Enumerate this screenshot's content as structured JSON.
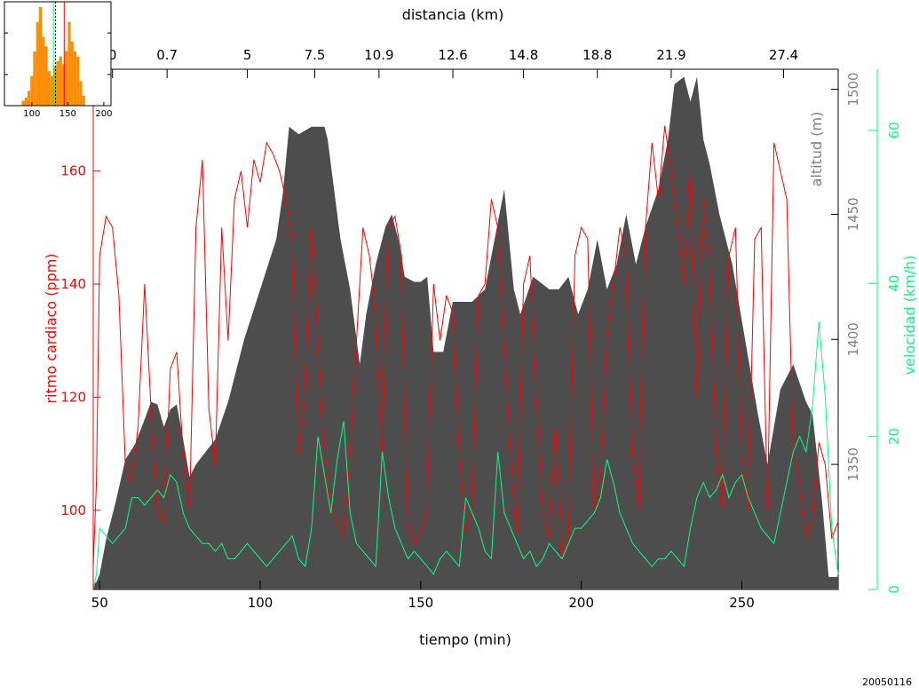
{
  "chart_data": [
    {
      "type": "area+line",
      "top_axis_label": "distancia (km)",
      "top_ticks": [
        {
          "t": 54,
          "label": "0"
        },
        {
          "t": 71,
          "label": "0.7"
        },
        {
          "t": 96,
          "label": "5"
        },
        {
          "t": 117,
          "label": "7.5"
        },
        {
          "t": 137,
          "label": "10.9"
        },
        {
          "t": 160,
          "label": "12.6"
        },
        {
          "t": 182,
          "label": "14.8"
        },
        {
          "t": 205,
          "label": "18.8"
        },
        {
          "t": 228,
          "label": "21.9"
        },
        {
          "t": 263,
          "label": "27.4"
        }
      ],
      "xlabel": "tiempo (min)",
      "x_ticks": [
        50,
        100,
        150,
        200,
        250
      ],
      "xlim": [
        48,
        280
      ],
      "y_left_label": "ritmo cardiaco (ppm)",
      "y_left_ticks": [
        100,
        120,
        140,
        160
      ],
      "y_left_lim": [
        86,
        178
      ],
      "y_right1_label": "altitud (m)",
      "y_right1_ticks": [
        1350,
        1400,
        1450,
        1500
      ],
      "y_right1_lim": [
        1300,
        1508
      ],
      "y_right2_label": "velocidad (km/h)",
      "y_right2_ticks": [
        0,
        20,
        40,
        60
      ],
      "y_right2_lim": [
        0,
        68
      ],
      "colors": {
        "heart_rate": "#ff0000",
        "altitude": "#4d4d4d",
        "speed": "#00ff7f",
        "axes": "#000000"
      },
      "series": [
        {
          "name": "altitud (m)",
          "x": [
            48,
            49,
            50,
            52,
            55,
            58,
            61,
            64,
            66,
            68,
            70,
            72,
            74,
            76,
            78,
            80,
            83,
            86,
            90,
            95,
            100,
            105,
            107,
            109,
            112,
            116,
            120,
            121,
            123,
            125,
            128,
            131,
            133,
            136,
            139,
            141,
            143,
            145,
            148,
            150,
            152,
            154,
            157,
            160,
            163,
            166,
            170,
            173,
            176,
            179,
            181,
            185,
            190,
            193,
            196,
            199,
            202,
            205,
            208,
            211,
            214,
            217,
            220,
            224,
            227,
            229,
            232,
            234,
            236,
            238,
            240,
            243,
            247,
            251,
            255,
            258,
            262,
            266,
            270,
            272,
            275,
            277,
            279,
            280
          ],
          "values": [
            1302,
            1303,
            1306,
            1320,
            1335,
            1352,
            1358,
            1368,
            1375,
            1374,
            1365,
            1372,
            1374,
            1360,
            1345,
            1350,
            1355,
            1360,
            1375,
            1400,
            1420,
            1440,
            1458,
            1485,
            1482,
            1485,
            1485,
            1480,
            1460,
            1440,
            1420,
            1390,
            1410,
            1430,
            1445,
            1450,
            1440,
            1425,
            1423,
            1423,
            1425,
            1395,
            1395,
            1415,
            1415,
            1415,
            1420,
            1440,
            1460,
            1420,
            1410,
            1425,
            1420,
            1420,
            1425,
            1410,
            1420,
            1440,
            1420,
            1430,
            1450,
            1430,
            1445,
            1460,
            1480,
            1502,
            1505,
            1495,
            1505,
            1480,
            1470,
            1450,
            1430,
            1400,
            1370,
            1350,
            1380,
            1390,
            1375,
            1370,
            1335,
            1305,
            1305,
            1305
          ]
        },
        {
          "name": "ritmo cardiaco (ppm)",
          "x": [
            48,
            49,
            50,
            52,
            54,
            56,
            58,
            60,
            62,
            64,
            66,
            68,
            70,
            72,
            74,
            76,
            78,
            80,
            82,
            84,
            86,
            88,
            90,
            92,
            94,
            96,
            98,
            100,
            102,
            104,
            106,
            108,
            110,
            112,
            114,
            116,
            118,
            120,
            122,
            124,
            126,
            128,
            130,
            132,
            134,
            136,
            138,
            140,
            142,
            144,
            146,
            148,
            150,
            152,
            154,
            156,
            158,
            160,
            162,
            164,
            166,
            168,
            170,
            172,
            174,
            176,
            178,
            180,
            182,
            184,
            186,
            188,
            190,
            192,
            194,
            196,
            198,
            200,
            202,
            204,
            206,
            208,
            210,
            212,
            214,
            216,
            218,
            220,
            222,
            224,
            226,
            228,
            230,
            232,
            234,
            236,
            238,
            240,
            242,
            244,
            246,
            248,
            250,
            252,
            254,
            256,
            258,
            260,
            262,
            264,
            266,
            268,
            270,
            272,
            274,
            276,
            278,
            280
          ],
          "values": [
            90,
            105,
            145,
            152,
            150,
            138,
            108,
            105,
            115,
            140,
            118,
            100,
            98,
            125,
            128,
            110,
            100,
            150,
            162,
            118,
            108,
            150,
            130,
            155,
            160,
            150,
            162,
            158,
            165,
            163,
            160,
            155,
            148,
            110,
            120,
            150,
            130,
            110,
            100,
            98,
            95,
            110,
            130,
            150,
            145,
            135,
            110,
            150,
            152,
            145,
            98,
            94,
            96,
            100,
            140,
            130,
            138,
            135,
            110,
            96,
            100,
            138,
            140,
            155,
            150,
            130,
            110,
            96,
            140,
            145,
            120,
            100,
            95,
            115,
            92,
            95,
            145,
            150,
            148,
            100,
            105,
            130,
            140,
            150,
            145,
            110,
            100,
            150,
            165,
            155,
            168,
            160,
            150,
            140,
            160,
            120,
            155,
            145,
            110,
            100,
            145,
            150,
            110,
            100,
            148,
            150,
            100,
            165,
            160,
            155,
            110,
            105,
            95,
            98,
            112,
            108,
            95,
            98
          ]
        },
        {
          "name": "velocidad (km/h)",
          "x": [
            48,
            49,
            50,
            52,
            54,
            56,
            58,
            60,
            62,
            64,
            66,
            68,
            70,
            72,
            74,
            76,
            78,
            80,
            82,
            84,
            86,
            88,
            90,
            92,
            94,
            96,
            98,
            100,
            102,
            104,
            106,
            108,
            110,
            112,
            114,
            116,
            118,
            120,
            122,
            124,
            126,
            128,
            130,
            132,
            134,
            136,
            138,
            140,
            142,
            144,
            146,
            148,
            150,
            152,
            154,
            156,
            158,
            160,
            162,
            164,
            166,
            168,
            170,
            172,
            174,
            176,
            178,
            180,
            182,
            184,
            186,
            188,
            190,
            192,
            194,
            196,
            198,
            200,
            202,
            204,
            206,
            208,
            210,
            212,
            214,
            216,
            218,
            220,
            222,
            224,
            226,
            228,
            230,
            232,
            234,
            236,
            238,
            240,
            242,
            244,
            246,
            248,
            250,
            252,
            254,
            256,
            258,
            260,
            262,
            264,
            266,
            268,
            270,
            272,
            274,
            276,
            278,
            280
          ],
          "values": [
            0,
            2,
            8,
            7,
            6,
            7,
            8,
            12,
            12,
            11,
            12,
            13,
            12,
            15,
            14,
            10,
            8,
            7,
            6,
            6,
            5,
            6,
            4,
            4,
            5,
            6,
            5,
            4,
            3,
            4,
            5,
            6,
            7,
            4,
            3,
            8,
            20,
            15,
            10,
            17,
            22,
            10,
            6,
            5,
            4,
            3,
            18,
            12,
            8,
            6,
            4,
            5,
            4,
            3,
            2,
            4,
            5,
            4,
            3,
            12,
            10,
            8,
            5,
            4,
            18,
            10,
            8,
            6,
            4,
            5,
            3,
            4,
            6,
            5,
            4,
            6,
            8,
            8,
            9,
            10,
            12,
            17,
            14,
            10,
            8,
            6,
            5,
            4,
            3,
            4,
            4,
            5,
            4,
            3,
            8,
            12,
            14,
            12,
            13,
            15,
            12,
            14,
            15,
            12,
            10,
            8,
            7,
            6,
            10,
            14,
            18,
            20,
            18,
            24,
            35,
            25,
            8,
            2
          ]
        }
      ]
    },
    {
      "type": "histogram",
      "x_ticks": [
        100,
        150,
        200
      ],
      "xlim": [
        62,
        210
      ],
      "bins": [
        {
          "x": 62,
          "w": 4,
          "v": 0
        },
        {
          "x": 66,
          "w": 4,
          "v": 0
        },
        {
          "x": 70,
          "w": 4,
          "v": 0
        },
        {
          "x": 74,
          "w": 4,
          "v": 0
        },
        {
          "x": 78,
          "w": 4,
          "v": 0
        },
        {
          "x": 82,
          "w": 4,
          "v": 0
        },
        {
          "x": 86,
          "w": 4,
          "v": 0.05
        },
        {
          "x": 90,
          "w": 4,
          "v": 0.08
        },
        {
          "x": 94,
          "w": 4,
          "v": 0.15
        },
        {
          "x": 98,
          "w": 4,
          "v": 0.3
        },
        {
          "x": 102,
          "w": 4,
          "v": 0.55
        },
        {
          "x": 106,
          "w": 4,
          "v": 0.85
        },
        {
          "x": 110,
          "w": 4,
          "v": 1.0
        },
        {
          "x": 114,
          "w": 4,
          "v": 0.7
        },
        {
          "x": 118,
          "w": 4,
          "v": 0.6
        },
        {
          "x": 122,
          "w": 4,
          "v": 0.35
        },
        {
          "x": 126,
          "w": 4,
          "v": 0.3
        },
        {
          "x": 130,
          "w": 4,
          "v": 0.4
        },
        {
          "x": 134,
          "w": 4,
          "v": 0.45
        },
        {
          "x": 138,
          "w": 4,
          "v": 0.5
        },
        {
          "x": 142,
          "w": 4,
          "v": 0.42
        },
        {
          "x": 146,
          "w": 4,
          "v": 0.55
        },
        {
          "x": 150,
          "w": 4,
          "v": 0.85
        },
        {
          "x": 154,
          "w": 4,
          "v": 0.65
        },
        {
          "x": 158,
          "w": 4,
          "v": 0.55
        },
        {
          "x": 162,
          "w": 4,
          "v": 0.5
        },
        {
          "x": 166,
          "w": 4,
          "v": 0.25
        },
        {
          "x": 170,
          "w": 4,
          "v": 0.1
        },
        {
          "x": 174,
          "w": 4,
          "v": 0
        }
      ],
      "mean": 133,
      "threshold": 130,
      "high_line": 145,
      "colors": {
        "bars": "#ff8c00",
        "mean": "#000000",
        "threshold": "#00ff7f",
        "high_line": "#ff0000"
      }
    }
  ],
  "footer": {
    "date": "20050116"
  }
}
